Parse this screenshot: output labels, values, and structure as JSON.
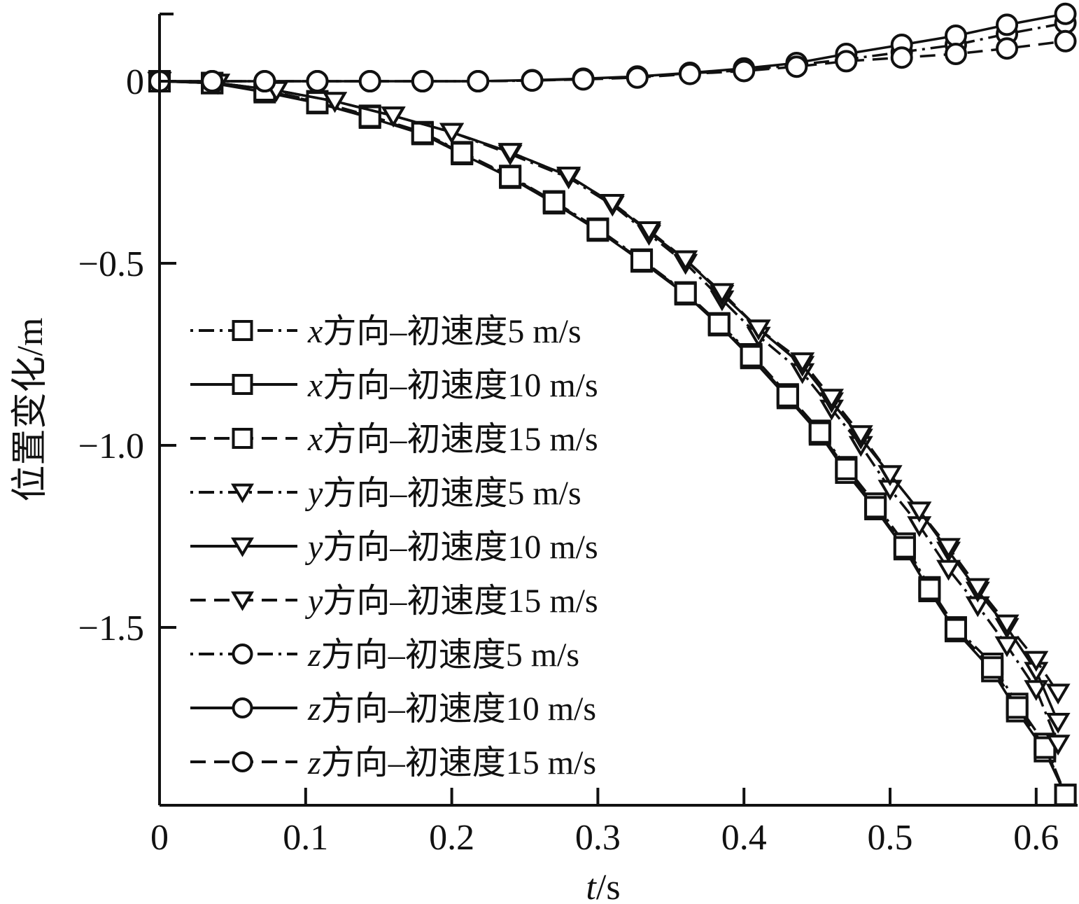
{
  "chart_data": {
    "type": "line",
    "xlabel_var": "t",
    "xlabel_unit": "/s",
    "ylabel": "位置变化/m",
    "xlim": [
      0,
      0.62
    ],
    "ylim": [
      -1.98,
      0.2
    ],
    "x_ticks": [
      0,
      0.1,
      0.2,
      0.3,
      0.4,
      0.5,
      0.6
    ],
    "x_tick_labels": [
      "0",
      "0.1",
      "0.2",
      "0.3",
      "0.4",
      "0.5",
      "0.6"
    ],
    "y_ticks": [
      0,
      -0.5,
      -1.0,
      -1.5
    ],
    "y_tick_labels": [
      "0",
      "−0.5",
      "−1.0",
      "−1.5"
    ],
    "grid": false,
    "legend_position": "left-center",
    "series": [
      {
        "var": "x",
        "name": "方向–初速度5 m/s",
        "marker": "square",
        "dash": "dashdot",
        "x": [
          0,
          0.036,
          0.072,
          0.108,
          0.144,
          0.18,
          0.207,
          0.24,
          0.27,
          0.3,
          0.33,
          0.36,
          0.383,
          0.405,
          0.43,
          0.452,
          0.47,
          0.49,
          0.51,
          0.527,
          0.545,
          0.57,
          0.587,
          0.606,
          0.62
        ],
        "y": [
          0,
          -0.005,
          -0.025,
          -0.055,
          -0.095,
          -0.14,
          -0.195,
          -0.26,
          -0.33,
          -0.405,
          -0.49,
          -0.58,
          -0.665,
          -0.75,
          -0.86,
          -0.96,
          -1.06,
          -1.16,
          -1.27,
          -1.39,
          -1.5,
          -1.6,
          -1.71,
          -1.82,
          -1.96
        ]
      },
      {
        "var": "x",
        "name": "方向–初速度10 m/s",
        "marker": "square",
        "dash": "solid",
        "x": [
          0,
          0.036,
          0.072,
          0.108,
          0.144,
          0.18,
          0.207,
          0.24,
          0.27,
          0.3,
          0.33,
          0.36,
          0.383,
          0.405,
          0.43,
          0.452,
          0.47,
          0.49,
          0.51,
          0.527,
          0.545,
          0.57,
          0.587,
          0.606,
          0.62
        ],
        "y": [
          0,
          -0.005,
          -0.03,
          -0.06,
          -0.1,
          -0.145,
          -0.2,
          -0.265,
          -0.335,
          -0.41,
          -0.495,
          -0.585,
          -0.67,
          -0.76,
          -0.87,
          -0.97,
          -1.075,
          -1.175,
          -1.285,
          -1.4,
          -1.51,
          -1.62,
          -1.73,
          -1.84,
          -1.96
        ]
      },
      {
        "var": "x",
        "name": "方向–初速度15 m/s",
        "marker": "square",
        "dash": "dash",
        "x": [
          0,
          0.036,
          0.072,
          0.108,
          0.144,
          0.18,
          0.207,
          0.24,
          0.27,
          0.3,
          0.33,
          0.36,
          0.383,
          0.405,
          0.43,
          0.452,
          0.47,
          0.49,
          0.51,
          0.527,
          0.545,
          0.57,
          0.587,
          0.606,
          0.62
        ],
        "y": [
          0,
          -0.005,
          -0.025,
          -0.058,
          -0.097,
          -0.142,
          -0.197,
          -0.262,
          -0.332,
          -0.407,
          -0.492,
          -0.582,
          -0.667,
          -0.755,
          -0.865,
          -0.965,
          -1.065,
          -1.17,
          -1.28,
          -1.395,
          -1.505,
          -1.61,
          -1.72,
          -1.83,
          -1.96
        ]
      },
      {
        "var": "y",
        "name": "方向–初速度5 m/s",
        "marker": "triangle-down",
        "dash": "dashdot",
        "x": [
          0,
          0.04,
          0.08,
          0.12,
          0.16,
          0.2,
          0.24,
          0.28,
          0.31,
          0.335,
          0.36,
          0.385,
          0.41,
          0.44,
          0.46,
          0.48,
          0.5,
          0.52,
          0.54,
          0.56,
          0.58,
          0.6,
          0.615
        ],
        "y": [
          0,
          -0.005,
          -0.025,
          -0.055,
          -0.095,
          -0.14,
          -0.2,
          -0.265,
          -0.34,
          -0.42,
          -0.5,
          -0.6,
          -0.7,
          -0.8,
          -0.9,
          -1.0,
          -1.12,
          -1.22,
          -1.34,
          -1.44,
          -1.55,
          -1.67,
          -1.82
        ]
      },
      {
        "var": "y",
        "name": "方向–初速度10 m/s",
        "marker": "triangle-down",
        "dash": "solid",
        "x": [
          0,
          0.04,
          0.08,
          0.12,
          0.16,
          0.2,
          0.24,
          0.28,
          0.31,
          0.335,
          0.36,
          0.385,
          0.41,
          0.44,
          0.46,
          0.48,
          0.5,
          0.52,
          0.54,
          0.56,
          0.58,
          0.6,
          0.615
        ],
        "y": [
          0,
          -0.005,
          -0.025,
          -0.055,
          -0.095,
          -0.14,
          -0.195,
          -0.26,
          -0.335,
          -0.415,
          -0.49,
          -0.585,
          -0.68,
          -0.78,
          -0.88,
          -0.98,
          -1.08,
          -1.18,
          -1.29,
          -1.4,
          -1.5,
          -1.62,
          -1.76
        ]
      },
      {
        "var": "y",
        "name": "方向–初速度15 m/s",
        "marker": "triangle-down",
        "dash": "dash",
        "x": [
          0,
          0.04,
          0.08,
          0.12,
          0.16,
          0.2,
          0.24,
          0.28,
          0.31,
          0.335,
          0.36,
          0.385,
          0.41,
          0.44,
          0.46,
          0.48,
          0.5,
          0.52,
          0.54,
          0.56,
          0.58,
          0.6,
          0.615
        ],
        "y": [
          0,
          -0.005,
          -0.025,
          -0.055,
          -0.095,
          -0.14,
          -0.195,
          -0.26,
          -0.335,
          -0.41,
          -0.49,
          -0.58,
          -0.68,
          -0.77,
          -0.87,
          -0.97,
          -1.08,
          -1.18,
          -1.28,
          -1.39,
          -1.49,
          -1.59,
          -1.68
        ]
      },
      {
        "var": "z",
        "name": "方向–初速度5 m/s",
        "marker": "circle",
        "dash": "dashdot",
        "x": [
          0,
          0.036,
          0.072,
          0.108,
          0.144,
          0.18,
          0.218,
          0.255,
          0.29,
          0.327,
          0.363,
          0.4,
          0.436,
          0.47,
          0.508,
          0.545,
          0.58,
          0.62
        ],
        "y": [
          0,
          0,
          0,
          0,
          0,
          0,
          0,
          0.002,
          0.006,
          0.012,
          0.022,
          0.03,
          0.045,
          0.06,
          0.08,
          0.1,
          0.13,
          0.16
        ]
      },
      {
        "var": "z",
        "name": "方向–初速度10 m/s",
        "marker": "circle",
        "dash": "solid",
        "x": [
          0,
          0.036,
          0.072,
          0.108,
          0.144,
          0.18,
          0.218,
          0.255,
          0.29,
          0.327,
          0.363,
          0.4,
          0.436,
          0.47,
          0.508,
          0.545,
          0.58,
          0.62
        ],
        "y": [
          0,
          0,
          0,
          0,
          0,
          0,
          0,
          0.003,
          0.007,
          0.013,
          0.023,
          0.035,
          0.05,
          0.075,
          0.1,
          0.125,
          0.155,
          0.185
        ]
      },
      {
        "var": "z",
        "name": "方向–初速度15 m/s",
        "marker": "circle",
        "dash": "dash",
        "x": [
          0,
          0.036,
          0.072,
          0.108,
          0.144,
          0.18,
          0.218,
          0.255,
          0.29,
          0.327,
          0.363,
          0.4,
          0.436,
          0.47,
          0.508,
          0.545,
          0.58,
          0.62
        ],
        "y": [
          0,
          0,
          0,
          0,
          0,
          0,
          0,
          0.002,
          0.005,
          0.01,
          0.02,
          0.028,
          0.04,
          0.055,
          0.065,
          0.075,
          0.09,
          0.11
        ]
      }
    ]
  }
}
